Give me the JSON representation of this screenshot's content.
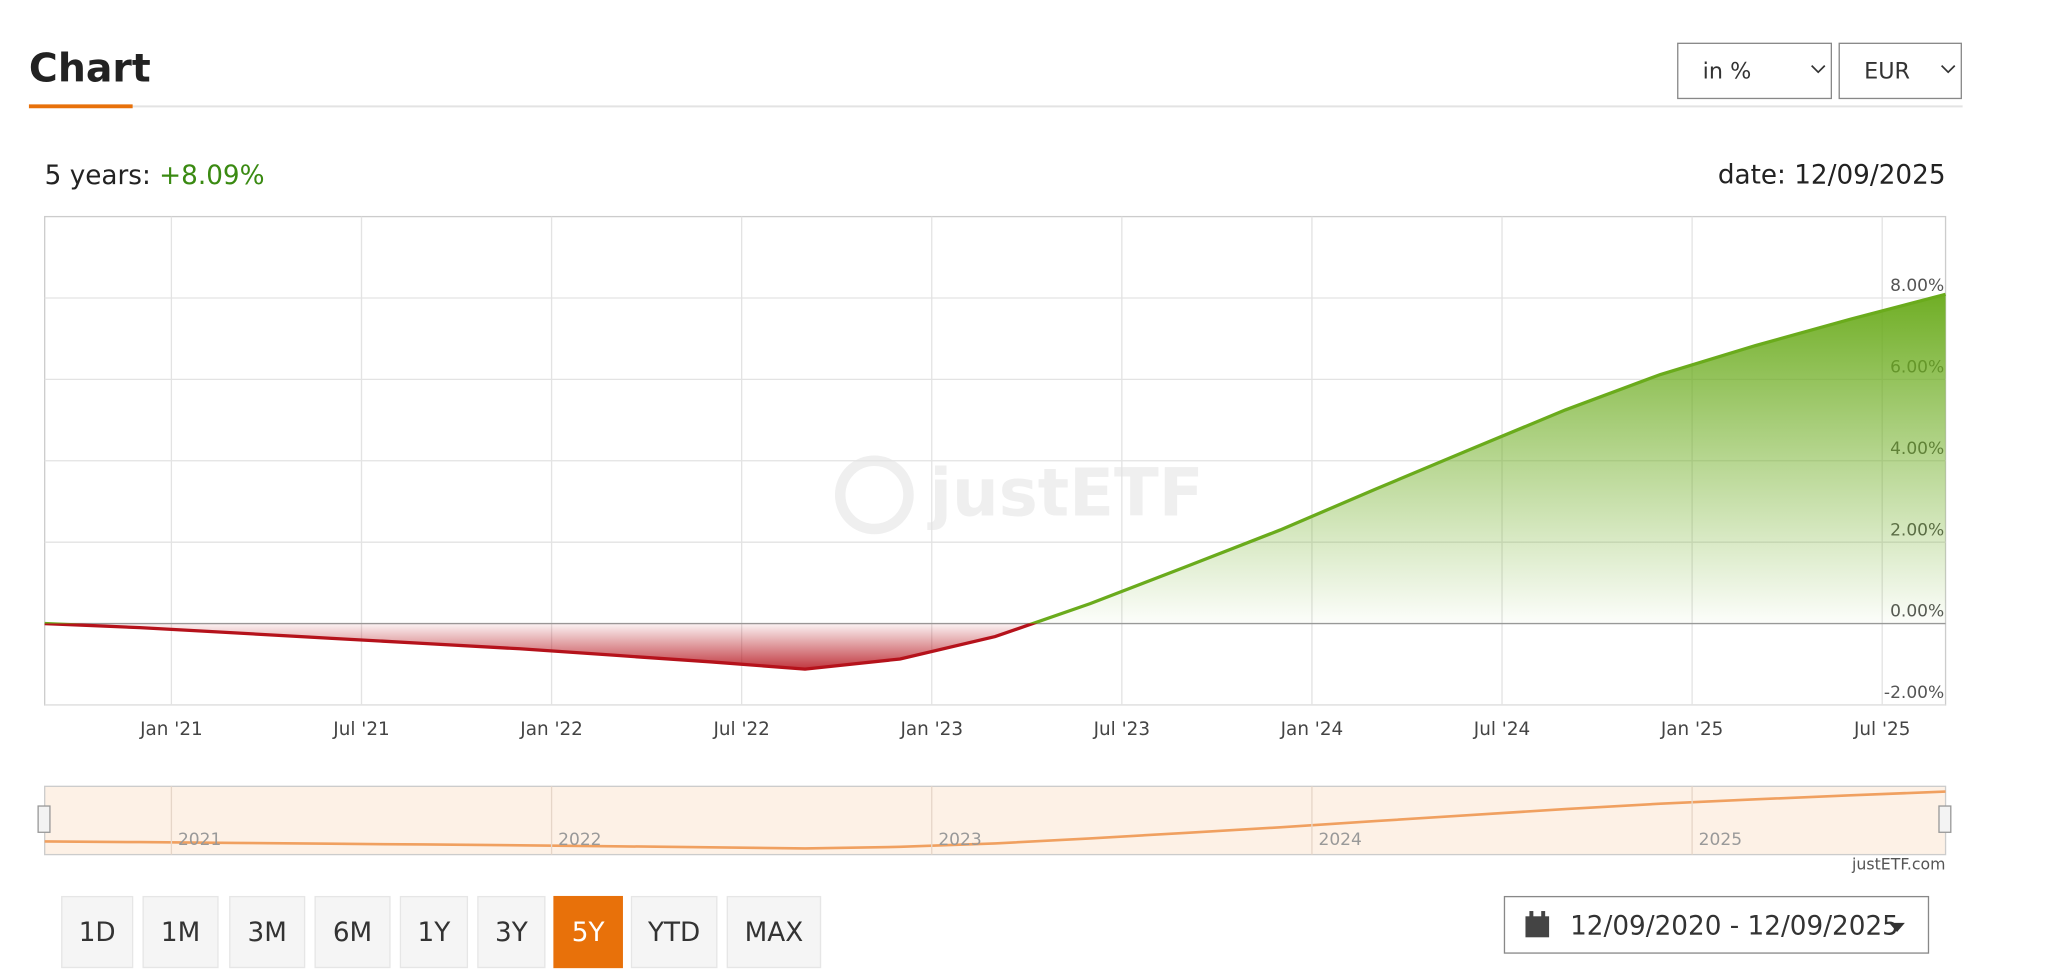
{
  "header": {
    "title": "Chart",
    "unit_select": "in %",
    "currency_select": "EUR"
  },
  "summary": {
    "period_label": "5 years:",
    "performance": "+8.09%",
    "date": "date: 12/09/2025"
  },
  "watermark": "justETF",
  "chart_data": {
    "type": "line",
    "x": [
      "2020-09",
      "2020-12",
      "2021-03",
      "2021-06",
      "2021-09",
      "2021-12",
      "2022-03",
      "2022-06",
      "2022-09",
      "2022-12",
      "2023-03",
      "2023-06",
      "2023-09",
      "2023-12",
      "2024-03",
      "2024-06",
      "2024-09",
      "2024-12",
      "2025-03",
      "2025-06",
      "2025-09"
    ],
    "series": [
      {
        "name": "Performance",
        "values": [
          0,
          -0.1,
          -0.23,
          -0.36,
          -0.49,
          -0.62,
          -0.78,
          -0.94,
          -1.12,
          -0.87,
          -0.32,
          0.49,
          1.39,
          2.3,
          3.3,
          4.28,
          5.25,
          6.12,
          6.83,
          7.48,
          8.09
        ]
      }
    ],
    "positive_color": "#6aab1c",
    "negative_color": "#b5121b",
    "xlim": [
      "2020-09",
      "2025-09"
    ],
    "xticks": [
      {
        "value": "2021-01",
        "label": "Jan '21"
      },
      {
        "value": "2021-07",
        "label": "Jul '21"
      },
      {
        "value": "2022-01",
        "label": "Jan '22"
      },
      {
        "value": "2022-07",
        "label": "Jul '22"
      },
      {
        "value": "2023-01",
        "label": "Jan '23"
      },
      {
        "value": "2023-07",
        "label": "Jul '23"
      },
      {
        "value": "2024-01",
        "label": "Jan '24"
      },
      {
        "value": "2024-07",
        "label": "Jul '24"
      },
      {
        "value": "2025-01",
        "label": "Jan '25"
      },
      {
        "value": "2025-07",
        "label": "Jul '25"
      }
    ],
    "ylim": [
      -2,
      10
    ],
    "yticks": [
      {
        "value": -2,
        "label": "-2.00%"
      },
      {
        "value": 0,
        "label": "0.00%"
      },
      {
        "value": 2,
        "label": "2.00%"
      },
      {
        "value": 4,
        "label": "4.00%"
      },
      {
        "value": 6,
        "label": "6.00%"
      },
      {
        "value": 8,
        "label": "8.00%"
      }
    ],
    "grid": true
  },
  "navigator": {
    "labels": [
      "2021",
      "2022",
      "2023",
      "2024",
      "2025"
    ],
    "credit": "justETF.com"
  },
  "ranges": {
    "buttons": [
      "1D",
      "1M",
      "3M",
      "6M",
      "1Y",
      "3Y",
      "5Y",
      "YTD",
      "MAX"
    ],
    "active": "5Y"
  },
  "date_range": "12/09/2020 - 12/09/2025"
}
